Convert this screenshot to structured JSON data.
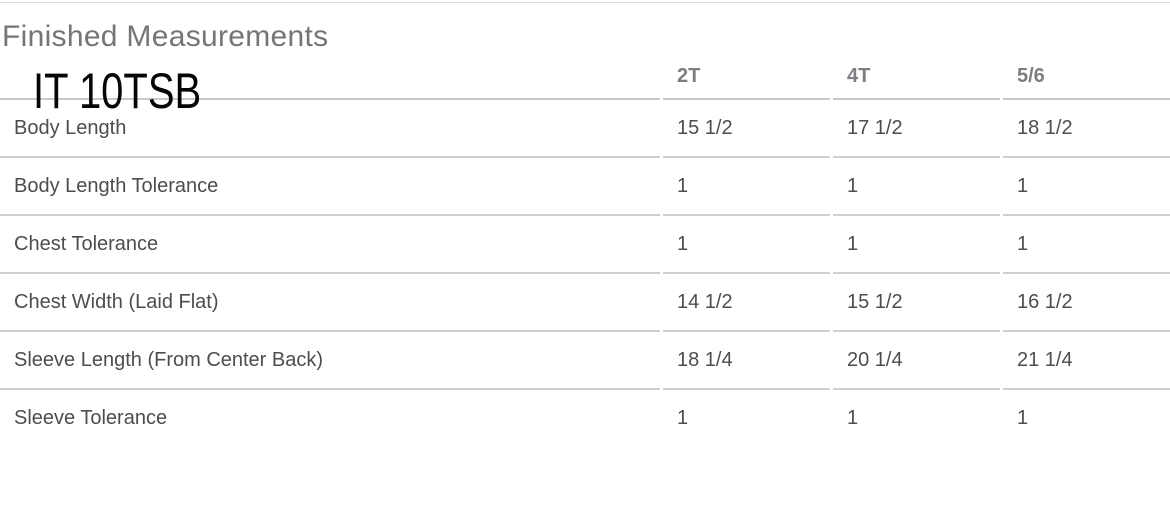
{
  "page": {
    "title": "Finished Measurements",
    "overlay_label": "IT 10TSB"
  },
  "table": {
    "columns": [
      "2T",
      "4T",
      "5/6"
    ],
    "rows": [
      {
        "label": "Body Length",
        "values": [
          "15 1/2",
          "17 1/2",
          "18 1/2"
        ]
      },
      {
        "label": "Body Length Tolerance",
        "values": [
          "1",
          "1",
          "1"
        ]
      },
      {
        "label": "Chest Tolerance",
        "values": [
          "1",
          "1",
          "1"
        ]
      },
      {
        "label": "Chest Width (Laid Flat)",
        "values": [
          "14 1/2",
          "15 1/2",
          "16 1/2"
        ]
      },
      {
        "label": "Sleeve Length (From Center Back)",
        "values": [
          "18 1/4",
          "20 1/4",
          "21 1/4"
        ]
      },
      {
        "label": "Sleeve Tolerance",
        "values": [
          "1",
          "1",
          "1"
        ]
      }
    ]
  }
}
